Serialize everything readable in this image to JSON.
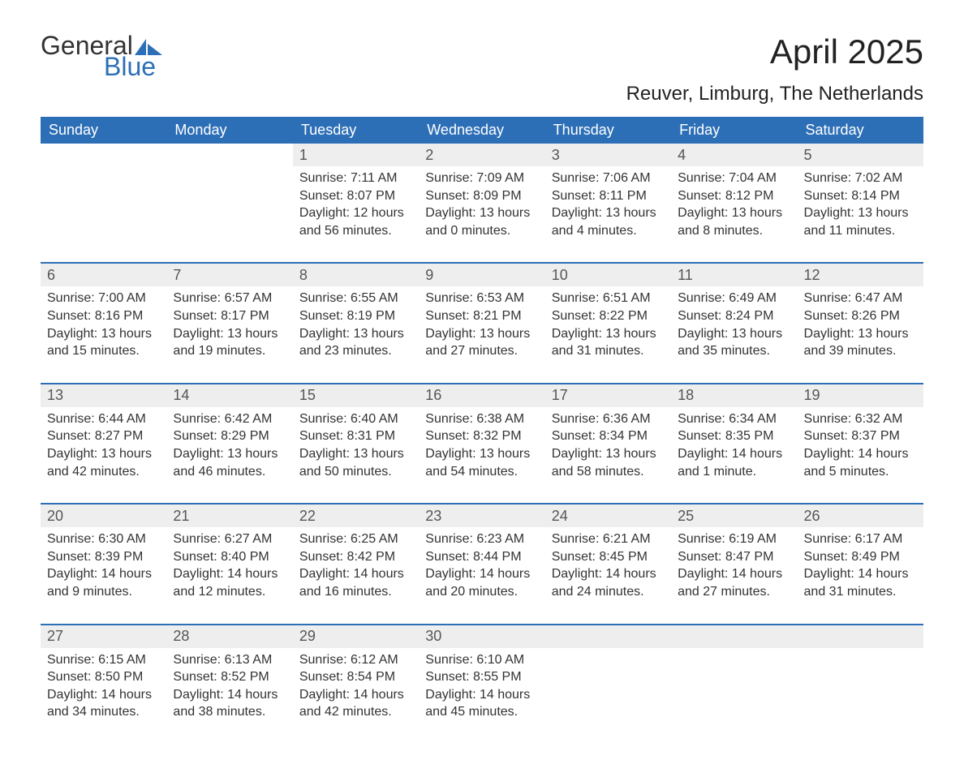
{
  "logo": {
    "word1": "General",
    "word2": "Blue",
    "icon_color": "#2d6fb6"
  },
  "title": "April 2025",
  "location": "Reuver, Limburg, The Netherlands",
  "colors": {
    "header_bg": "#2d6fb6",
    "header_text": "#ffffff",
    "daynum_bg": "#eeeeee",
    "daynum_text": "#555555",
    "body_text": "#333333",
    "separator": "#2d6fb6",
    "page_bg": "#ffffff"
  },
  "typography": {
    "title_fontsize_pt": 32,
    "location_fontsize_pt": 18,
    "weekday_fontsize_pt": 14,
    "daynum_fontsize_pt": 14,
    "cell_fontsize_pt": 12
  },
  "calendar": {
    "weekdays": [
      "Sunday",
      "Monday",
      "Tuesday",
      "Wednesday",
      "Thursday",
      "Friday",
      "Saturday"
    ],
    "labels": {
      "sunrise": "Sunrise: ",
      "sunset": "Sunset: ",
      "daylight": "Daylight: "
    },
    "weeks": [
      [
        null,
        null,
        {
          "day": "1",
          "sunrise": "7:11 AM",
          "sunset": "8:07 PM",
          "daylight": "12 hours and 56 minutes."
        },
        {
          "day": "2",
          "sunrise": "7:09 AM",
          "sunset": "8:09 PM",
          "daylight": "13 hours and 0 minutes."
        },
        {
          "day": "3",
          "sunrise": "7:06 AM",
          "sunset": "8:11 PM",
          "daylight": "13 hours and 4 minutes."
        },
        {
          "day": "4",
          "sunrise": "7:04 AM",
          "sunset": "8:12 PM",
          "daylight": "13 hours and 8 minutes."
        },
        {
          "day": "5",
          "sunrise": "7:02 AM",
          "sunset": "8:14 PM",
          "daylight": "13 hours and 11 minutes."
        }
      ],
      [
        {
          "day": "6",
          "sunrise": "7:00 AM",
          "sunset": "8:16 PM",
          "daylight": "13 hours and 15 minutes."
        },
        {
          "day": "7",
          "sunrise": "6:57 AM",
          "sunset": "8:17 PM",
          "daylight": "13 hours and 19 minutes."
        },
        {
          "day": "8",
          "sunrise": "6:55 AM",
          "sunset": "8:19 PM",
          "daylight": "13 hours and 23 minutes."
        },
        {
          "day": "9",
          "sunrise": "6:53 AM",
          "sunset": "8:21 PM",
          "daylight": "13 hours and 27 minutes."
        },
        {
          "day": "10",
          "sunrise": "6:51 AM",
          "sunset": "8:22 PM",
          "daylight": "13 hours and 31 minutes."
        },
        {
          "day": "11",
          "sunrise": "6:49 AM",
          "sunset": "8:24 PM",
          "daylight": "13 hours and 35 minutes."
        },
        {
          "day": "12",
          "sunrise": "6:47 AM",
          "sunset": "8:26 PM",
          "daylight": "13 hours and 39 minutes."
        }
      ],
      [
        {
          "day": "13",
          "sunrise": "6:44 AM",
          "sunset": "8:27 PM",
          "daylight": "13 hours and 42 minutes."
        },
        {
          "day": "14",
          "sunrise": "6:42 AM",
          "sunset": "8:29 PM",
          "daylight": "13 hours and 46 minutes."
        },
        {
          "day": "15",
          "sunrise": "6:40 AM",
          "sunset": "8:31 PM",
          "daylight": "13 hours and 50 minutes."
        },
        {
          "day": "16",
          "sunrise": "6:38 AM",
          "sunset": "8:32 PM",
          "daylight": "13 hours and 54 minutes."
        },
        {
          "day": "17",
          "sunrise": "6:36 AM",
          "sunset": "8:34 PM",
          "daylight": "13 hours and 58 minutes."
        },
        {
          "day": "18",
          "sunrise": "6:34 AM",
          "sunset": "8:35 PM",
          "daylight": "14 hours and 1 minute."
        },
        {
          "day": "19",
          "sunrise": "6:32 AM",
          "sunset": "8:37 PM",
          "daylight": "14 hours and 5 minutes."
        }
      ],
      [
        {
          "day": "20",
          "sunrise": "6:30 AM",
          "sunset": "8:39 PM",
          "daylight": "14 hours and 9 minutes."
        },
        {
          "day": "21",
          "sunrise": "6:27 AM",
          "sunset": "8:40 PM",
          "daylight": "14 hours and 12 minutes."
        },
        {
          "day": "22",
          "sunrise": "6:25 AM",
          "sunset": "8:42 PM",
          "daylight": "14 hours and 16 minutes."
        },
        {
          "day": "23",
          "sunrise": "6:23 AM",
          "sunset": "8:44 PM",
          "daylight": "14 hours and 20 minutes."
        },
        {
          "day": "24",
          "sunrise": "6:21 AM",
          "sunset": "8:45 PM",
          "daylight": "14 hours and 24 minutes."
        },
        {
          "day": "25",
          "sunrise": "6:19 AM",
          "sunset": "8:47 PM",
          "daylight": "14 hours and 27 minutes."
        },
        {
          "day": "26",
          "sunrise": "6:17 AM",
          "sunset": "8:49 PM",
          "daylight": "14 hours and 31 minutes."
        }
      ],
      [
        {
          "day": "27",
          "sunrise": "6:15 AM",
          "sunset": "8:50 PM",
          "daylight": "14 hours and 34 minutes."
        },
        {
          "day": "28",
          "sunrise": "6:13 AM",
          "sunset": "8:52 PM",
          "daylight": "14 hours and 38 minutes."
        },
        {
          "day": "29",
          "sunrise": "6:12 AM",
          "sunset": "8:54 PM",
          "daylight": "14 hours and 42 minutes."
        },
        {
          "day": "30",
          "sunrise": "6:10 AM",
          "sunset": "8:55 PM",
          "daylight": "14 hours and 45 minutes."
        },
        null,
        null,
        null
      ]
    ]
  }
}
